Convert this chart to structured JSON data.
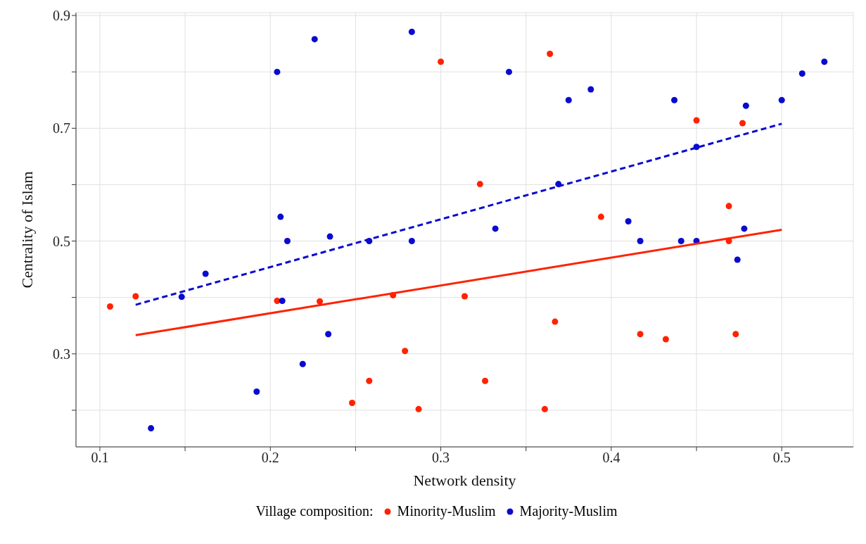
{
  "chart_data": {
    "type": "scatter",
    "xlabel": "Network density",
    "ylabel": "Centrality of Islam",
    "legend_title": "Village composition:",
    "legend": "bottom",
    "grid": true,
    "marker": "circle",
    "xlim": [
      0.086,
      0.542
    ],
    "ylim": [
      0.135,
      0.905
    ],
    "xticks": [
      0.1,
      {
        "value": 0.15,
        "label": null
      },
      0.2,
      {
        "value": 0.25,
        "label": null
      },
      0.3,
      {
        "value": 0.35,
        "label": null
      },
      0.4,
      {
        "value": 0.45,
        "label": null
      },
      0.5
    ],
    "yticks": [
      {
        "value": 0.2,
        "label": null
      },
      0.3,
      {
        "value": 0.4,
        "label": null
      },
      0.5,
      {
        "value": 0.6,
        "label": null
      },
      0.7,
      {
        "value": 0.8,
        "label": null
      },
      0.9
    ],
    "series": [
      {
        "name": "Minority-Muslim",
        "color": "#ff2200",
        "x": [
          0.106,
          0.121,
          0.204,
          0.229,
          0.248,
          0.258,
          0.272,
          0.279,
          0.287,
          0.3,
          0.314,
          0.323,
          0.326,
          0.361,
          0.364,
          0.367,
          0.394,
          0.417,
          0.432,
          0.45,
          0.469,
          0.469,
          0.473,
          0.477
        ],
        "values": [
          0.384,
          0.402,
          0.394,
          0.393,
          0.213,
          0.252,
          0.404,
          0.305,
          0.202,
          0.818,
          0.402,
          0.601,
          0.252,
          0.202,
          0.832,
          0.357,
          0.543,
          0.335,
          0.326,
          0.714,
          0.562,
          0.5,
          0.335,
          0.709
        ]
      },
      {
        "name": "Majority-Muslim",
        "color": "#0a0ad0",
        "x": [
          0.13,
          0.148,
          0.162,
          0.192,
          0.204,
          0.206,
          0.207,
          0.21,
          0.219,
          0.226,
          0.234,
          0.235,
          0.258,
          0.283,
          0.283,
          0.332,
          0.34,
          0.369,
          0.375,
          0.388,
          0.41,
          0.417,
          0.437,
          0.441,
          0.45,
          0.45,
          0.474,
          0.478,
          0.479,
          0.5,
          0.512,
          0.525
        ],
        "values": [
          0.168,
          0.401,
          0.442,
          0.233,
          0.8,
          0.543,
          0.394,
          0.5,
          0.282,
          0.858,
          0.335,
          0.508,
          0.5,
          0.871,
          0.5,
          0.522,
          0.8,
          0.601,
          0.75,
          0.769,
          0.535,
          0.5,
          0.75,
          0.5,
          0.667,
          0.5,
          0.467,
          0.522,
          0.74,
          0.75,
          0.797,
          0.818
        ]
      },
      {
        "type": "line",
        "color": "#ff2200",
        "line_style": "solid",
        "marker": "none",
        "x": [
          0.121,
          0.5
        ],
        "values": [
          0.333,
          0.52
        ]
      },
      {
        "type": "line",
        "color": "#0a0ad0",
        "line_style": "dashed",
        "marker": "none",
        "x": [
          0.121,
          0.5
        ],
        "values": [
          0.387,
          0.708
        ]
      }
    ]
  }
}
